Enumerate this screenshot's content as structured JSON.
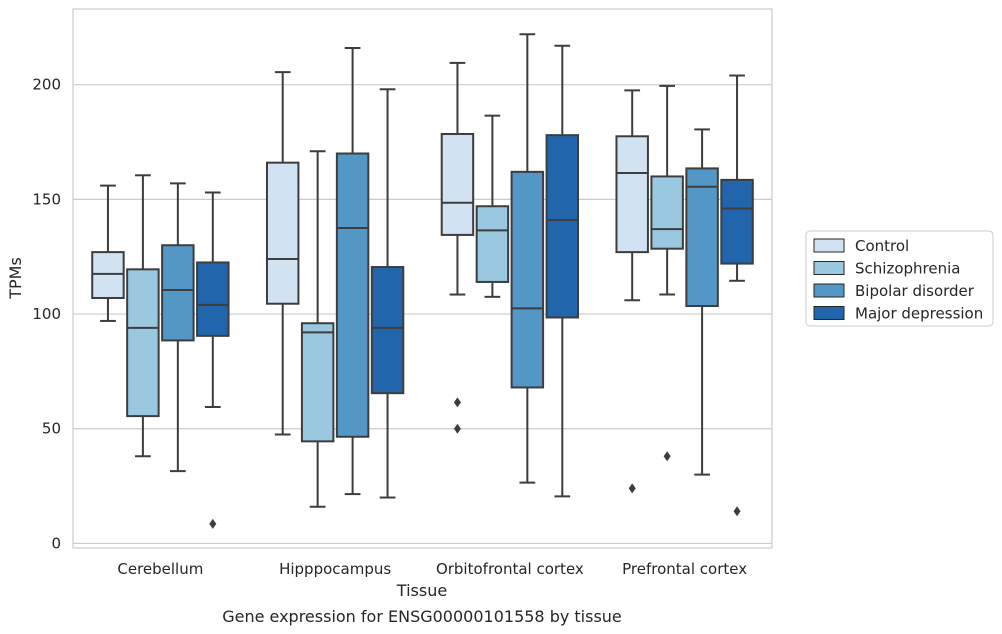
{
  "chart_data": {
    "type": "boxplot",
    "caption": "Gene expression for ENSG00000101558 by tissue",
    "xlabel": "Tissue",
    "ylabel": "TPMs",
    "ylim": [
      -2,
      233
    ],
    "yticks": [
      0,
      50,
      100,
      150,
      200
    ],
    "grid": true,
    "legend_position": "right",
    "categories": [
      "Cerebellum",
      "Hipppocampus",
      "Orbitofrontal cortex",
      "Prefrontal cortex"
    ],
    "series": [
      {
        "name": "Control",
        "color": "#d1e2f2",
        "boxes": [
          {
            "whislo": 97,
            "q1": 107,
            "med": 117.5,
            "q3": 127,
            "whishi": 156,
            "fliers": []
          },
          {
            "whislo": 47.5,
            "q1": 104.5,
            "med": 124,
            "q3": 166,
            "whishi": 205.5,
            "fliers": []
          },
          {
            "whislo": 108.5,
            "q1": 134.5,
            "med": 148.5,
            "q3": 178.5,
            "whishi": 209.5,
            "fliers": [
              61.5,
              50
            ]
          },
          {
            "whislo": 106,
            "q1": 127,
            "med": 161.5,
            "q3": 177.5,
            "whishi": 197.5,
            "fliers": [
              24
            ]
          }
        ]
      },
      {
        "name": "Schizophrenia",
        "color": "#9ac8e0",
        "boxes": [
          {
            "whislo": 38,
            "q1": 55.5,
            "med": 94,
            "q3": 119.5,
            "whishi": 160.5,
            "fliers": []
          },
          {
            "whislo": 16,
            "q1": 44.5,
            "med": 92,
            "q3": 96,
            "whishi": 171,
            "fliers": []
          },
          {
            "whislo": 107.5,
            "q1": 114,
            "med": 136.5,
            "q3": 147,
            "whishi": 186.5,
            "fliers": []
          },
          {
            "whislo": 108.5,
            "q1": 128.5,
            "med": 137,
            "q3": 160,
            "whishi": 199.5,
            "fliers": [
              38
            ]
          }
        ]
      },
      {
        "name": "Bipolar disorder",
        "color": "#5297c6",
        "boxes": [
          {
            "whislo": 31.5,
            "q1": 88.5,
            "med": 110.5,
            "q3": 130,
            "whishi": 157,
            "fliers": []
          },
          {
            "whislo": 21.5,
            "q1": 46.5,
            "med": 137.5,
            "q3": 170,
            "whishi": 216,
            "fliers": []
          },
          {
            "whislo": 26.5,
            "q1": 68,
            "med": 102.5,
            "q3": 162,
            "whishi": 222,
            "fliers": []
          },
          {
            "whislo": 30,
            "q1": 103.5,
            "med": 155.5,
            "q3": 163.5,
            "whishi": 180.5,
            "fliers": []
          }
        ]
      },
      {
        "name": "Major depression",
        "color": "#2166ac",
        "boxes": [
          {
            "whislo": 59.5,
            "q1": 90.5,
            "med": 104,
            "q3": 122.5,
            "whishi": 153,
            "fliers": [
              8.5
            ]
          },
          {
            "whislo": 20,
            "q1": 65.5,
            "med": 94,
            "q3": 120.5,
            "whishi": 198,
            "fliers": []
          },
          {
            "whislo": 20.5,
            "q1": 98.5,
            "med": 141,
            "q3": 178,
            "whishi": 217,
            "fliers": []
          },
          {
            "whislo": 114.5,
            "q1": 122,
            "med": 146,
            "q3": 158.5,
            "whishi": 204,
            "fliers": [
              14
            ]
          }
        ]
      }
    ]
  }
}
